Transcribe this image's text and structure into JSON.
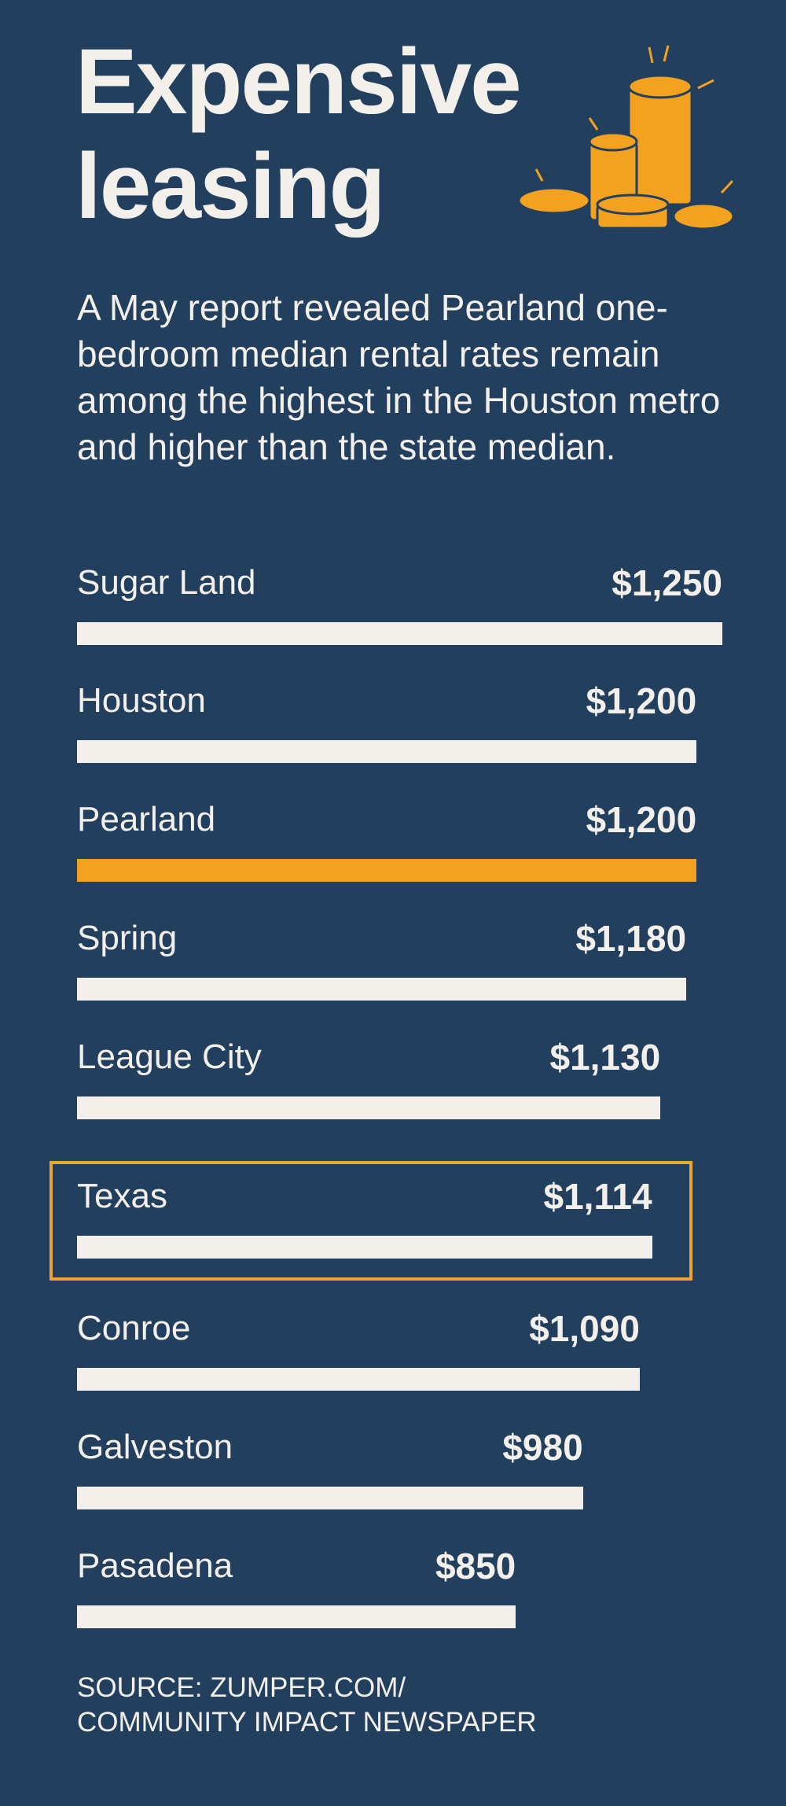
{
  "chart_data": {
    "type": "bar",
    "title": "Expensive leasing",
    "subtitle": "A May report revealed Pearland one-bedroom median rental rates remain among the highest in the Houston metro and higher than the state median.",
    "categories": [
      "Sugar Land",
      "Houston",
      "Pearland",
      "Spring",
      "League City",
      "Texas",
      "Conroe",
      "Galveston",
      "Pasadena"
    ],
    "values": [
      1250,
      1200,
      1200,
      1180,
      1130,
      1114,
      1090,
      980,
      850
    ],
    "value_labels": [
      "$1,250",
      "$1,200",
      "$1,200",
      "$1,180",
      "$1,130",
      "$1,114",
      "$1,090",
      "$980",
      "$850"
    ],
    "colors": [
      "#f3f0eb",
      "#f3f0eb",
      "#f2a121",
      "#f3f0eb",
      "#f3f0eb",
      "#f3f0eb",
      "#f3f0eb",
      "#f3f0eb",
      "#f3f0eb"
    ],
    "outlined": [
      "Texas"
    ],
    "outline_color": "#e9a52f",
    "xlim": [
      0,
      1250
    ],
    "source": [
      "SOURCE: ZUMPER.COM/",
      "COMMUNITY IMPACT NEWSPAPER"
    ]
  }
}
